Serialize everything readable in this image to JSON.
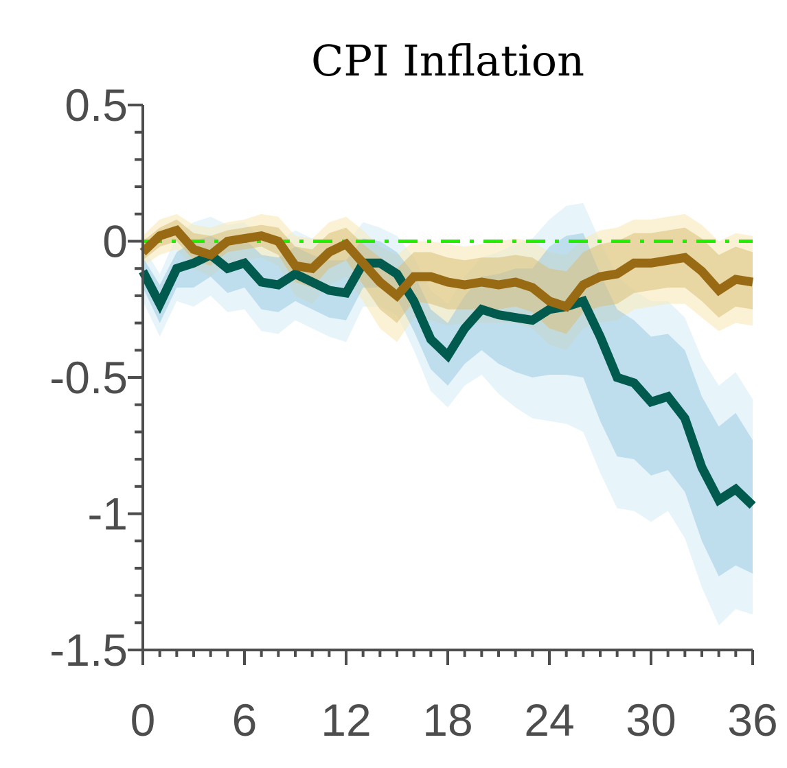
{
  "chart_data": {
    "type": "line",
    "title": "CPI Inflation",
    "xlabel": "",
    "ylabel": "",
    "xlim": [
      0,
      36
    ],
    "ylim": [
      -1.5,
      0.5
    ],
    "x_ticks": [
      0,
      6,
      12,
      18,
      24,
      30,
      36
    ],
    "x_tick_labels": [
      "0",
      "6",
      "12",
      "18",
      "24",
      "30",
      "36"
    ],
    "y_ticks": [
      0.5,
      0,
      -0.5,
      -1,
      -1.5
    ],
    "y_tick_labels": [
      "0.5",
      "0",
      "-0.5",
      "-1",
      "-1.5"
    ],
    "y_minor_step": 0.1,
    "x_minor_step": 1,
    "grid": false,
    "legend": "none",
    "zero_line": {
      "y": 0,
      "color": "#22ee00",
      "style": "dash-dot"
    },
    "x": [
      0,
      1,
      2,
      3,
      4,
      5,
      6,
      7,
      8,
      9,
      10,
      11,
      12,
      13,
      14,
      15,
      16,
      17,
      18,
      19,
      20,
      21,
      22,
      23,
      24,
      25,
      26,
      27,
      28,
      29,
      30,
      31,
      32,
      33,
      34,
      35,
      36
    ],
    "series": [
      {
        "color": "#005a4e",
        "band_inner_color": "#9ecae1",
        "band_outer_color": "#d4ecf7",
        "values": [
          -0.11,
          -0.23,
          -0.1,
          -0.08,
          -0.05,
          -0.1,
          -0.08,
          -0.15,
          -0.16,
          -0.12,
          -0.15,
          -0.18,
          -0.19,
          -0.08,
          -0.08,
          -0.12,
          -0.22,
          -0.36,
          -0.42,
          -0.32,
          -0.25,
          -0.27,
          -0.28,
          -0.29,
          -0.25,
          -0.24,
          -0.22,
          -0.35,
          -0.5,
          -0.52,
          -0.59,
          -0.57,
          -0.65,
          -0.83,
          -0.95,
          -0.91,
          -0.97
        ],
        "inner_upper": [
          -0.06,
          -0.16,
          -0.04,
          0.0,
          0.02,
          -0.01,
          0.01,
          -0.05,
          -0.06,
          -0.02,
          -0.05,
          -0.07,
          -0.07,
          0.01,
          0.0,
          -0.04,
          -0.12,
          -0.25,
          -0.3,
          -0.2,
          -0.13,
          -0.12,
          -0.1,
          -0.1,
          -0.02,
          0.02,
          0.03,
          -0.12,
          -0.25,
          -0.29,
          -0.35,
          -0.34,
          -0.4,
          -0.57,
          -0.68,
          -0.63,
          -0.73
        ],
        "inner_lower": [
          -0.17,
          -0.3,
          -0.17,
          -0.17,
          -0.13,
          -0.19,
          -0.17,
          -0.25,
          -0.26,
          -0.22,
          -0.25,
          -0.28,
          -0.29,
          -0.17,
          -0.17,
          -0.21,
          -0.33,
          -0.47,
          -0.53,
          -0.45,
          -0.4,
          -0.45,
          -0.48,
          -0.5,
          -0.49,
          -0.49,
          -0.5,
          -0.66,
          -0.79,
          -0.8,
          -0.86,
          -0.84,
          -0.92,
          -1.1,
          -1.23,
          -1.19,
          -1.22
        ],
        "outer_upper": [
          -0.02,
          -0.12,
          0.02,
          0.07,
          0.09,
          0.06,
          0.07,
          0.01,
          0.0,
          0.04,
          0.01,
          -0.01,
          -0.01,
          0.07,
          0.05,
          0.02,
          -0.06,
          -0.18,
          -0.23,
          -0.13,
          -0.06,
          -0.04,
          -0.01,
          0.01,
          0.08,
          0.13,
          0.14,
          0.0,
          -0.13,
          -0.18,
          -0.22,
          -0.22,
          -0.28,
          -0.43,
          -0.53,
          -0.48,
          -0.58
        ],
        "outer_lower": [
          -0.22,
          -0.35,
          -0.22,
          -0.24,
          -0.2,
          -0.26,
          -0.25,
          -0.33,
          -0.34,
          -0.29,
          -0.32,
          -0.35,
          -0.37,
          -0.24,
          -0.24,
          -0.27,
          -0.4,
          -0.55,
          -0.61,
          -0.53,
          -0.49,
          -0.56,
          -0.61,
          -0.65,
          -0.66,
          -0.67,
          -0.7,
          -0.85,
          -0.98,
          -0.99,
          -1.03,
          -0.99,
          -1.09,
          -1.27,
          -1.41,
          -1.35,
          -1.37
        ]
      },
      {
        "color": "#996a14",
        "band_inner_color": "#d8c07a",
        "band_outer_color": "#f7e7b5",
        "values": [
          -0.04,
          0.02,
          0.04,
          -0.03,
          -0.05,
          0.0,
          0.01,
          0.02,
          0.0,
          -0.09,
          -0.1,
          -0.04,
          -0.01,
          -0.08,
          -0.15,
          -0.2,
          -0.13,
          -0.13,
          -0.15,
          -0.16,
          -0.15,
          -0.16,
          -0.15,
          -0.17,
          -0.22,
          -0.24,
          -0.16,
          -0.13,
          -0.12,
          -0.08,
          -0.08,
          -0.07,
          -0.06,
          -0.11,
          -0.18,
          -0.14,
          -0.15
        ],
        "inner_upper": [
          0.0,
          0.05,
          0.08,
          0.03,
          0.02,
          0.04,
          0.05,
          0.06,
          0.05,
          -0.02,
          -0.03,
          0.03,
          0.05,
          -0.01,
          -0.06,
          -0.1,
          -0.04,
          -0.04,
          -0.06,
          -0.07,
          -0.06,
          -0.06,
          -0.05,
          -0.06,
          -0.1,
          -0.11,
          -0.04,
          -0.01,
          0.0,
          0.03,
          0.03,
          0.04,
          0.05,
          0.01,
          -0.05,
          -0.02,
          -0.04
        ],
        "inner_lower": [
          -0.07,
          -0.02,
          0.0,
          -0.07,
          -0.09,
          -0.04,
          -0.03,
          -0.02,
          -0.05,
          -0.15,
          -0.17,
          -0.1,
          -0.07,
          -0.16,
          -0.25,
          -0.3,
          -0.22,
          -0.23,
          -0.25,
          -0.25,
          -0.25,
          -0.25,
          -0.24,
          -0.26,
          -0.32,
          -0.34,
          -0.26,
          -0.24,
          -0.23,
          -0.19,
          -0.18,
          -0.17,
          -0.17,
          -0.22,
          -0.28,
          -0.24,
          -0.25
        ],
        "outer_upper": [
          0.02,
          0.08,
          0.1,
          0.06,
          0.05,
          0.07,
          0.08,
          0.1,
          0.09,
          0.02,
          0.01,
          0.07,
          0.09,
          0.04,
          -0.02,
          -0.05,
          0.0,
          0.0,
          -0.01,
          -0.02,
          -0.01,
          0.0,
          0.01,
          0.0,
          -0.04,
          -0.05,
          0.01,
          0.04,
          0.05,
          0.08,
          0.08,
          0.09,
          0.1,
          0.06,
          0.0,
          0.03,
          0.02
        ],
        "outer_lower": [
          -0.09,
          -0.05,
          -0.03,
          -0.1,
          -0.13,
          -0.08,
          -0.07,
          -0.06,
          -0.09,
          -0.2,
          -0.23,
          -0.16,
          -0.13,
          -0.22,
          -0.32,
          -0.37,
          -0.28,
          -0.29,
          -0.31,
          -0.3,
          -0.3,
          -0.3,
          -0.3,
          -0.32,
          -0.38,
          -0.4,
          -0.32,
          -0.3,
          -0.29,
          -0.25,
          -0.24,
          -0.23,
          -0.23,
          -0.28,
          -0.33,
          -0.3,
          -0.31
        ]
      }
    ]
  }
}
